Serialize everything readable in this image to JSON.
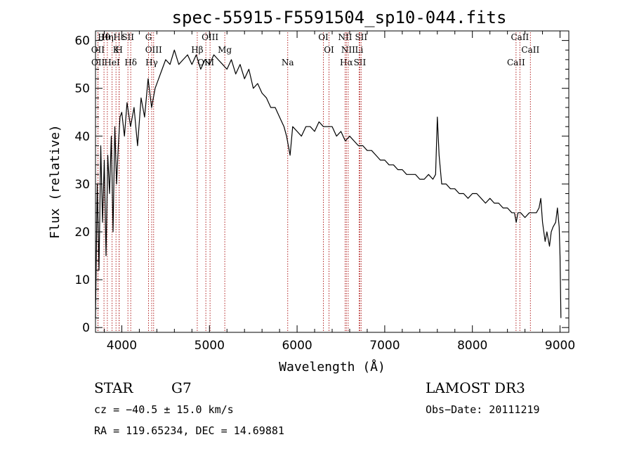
{
  "chart_data": {
    "type": "line",
    "title": "spec-55915-F5591504_sp10-044.fits",
    "xlabel": "Wavelength (Å)",
    "ylabel": "Flux (relative)",
    "xlim": [
      3700,
      9100
    ],
    "ylim": [
      -1,
      62
    ],
    "x_ticks": [
      4000,
      5000,
      6000,
      7000,
      8000,
      9000
    ],
    "x_tick_labels": [
      "4000",
      "5000",
      "6000",
      "7000",
      "8000",
      "9000"
    ],
    "y_ticks": [
      0,
      10,
      20,
      30,
      40,
      50,
      60
    ],
    "y_tick_labels": [
      "0",
      "10",
      "20",
      "30",
      "40",
      "50",
      "60"
    ],
    "series": [
      {
        "name": "flux",
        "x": [
          3700,
          3720,
          3740,
          3760,
          3780,
          3800,
          3820,
          3840,
          3860,
          3880,
          3900,
          3920,
          3940,
          3960,
          3980,
          4000,
          4030,
          4060,
          4100,
          4140,
          4180,
          4220,
          4260,
          4300,
          4340,
          4380,
          4420,
          4460,
          4500,
          4550,
          4600,
          4650,
          4700,
          4750,
          4800,
          4850,
          4900,
          4950,
          5000,
          5050,
          5100,
          5150,
          5200,
          5250,
          5300,
          5350,
          5400,
          5450,
          5500,
          5550,
          5600,
          5650,
          5700,
          5750,
          5800,
          5850,
          5880,
          5900,
          5920,
          5950,
          6000,
          6050,
          6100,
          6150,
          6200,
          6250,
          6300,
          6350,
          6400,
          6450,
          6500,
          6550,
          6600,
          6650,
          6700,
          6750,
          6800,
          6850,
          6900,
          6950,
          7000,
          7050,
          7100,
          7150,
          7200,
          7250,
          7300,
          7350,
          7400,
          7450,
          7500,
          7550,
          7580,
          7600,
          7620,
          7650,
          7700,
          7750,
          7800,
          7850,
          7900,
          7950,
          8000,
          8050,
          8100,
          8150,
          8200,
          8250,
          8300,
          8350,
          8400,
          8450,
          8480,
          8500,
          8520,
          8550,
          8600,
          8650,
          8700,
          8730,
          8760,
          8780,
          8800,
          8830,
          8850,
          8880,
          8900,
          8920,
          8950,
          8970,
          8990,
          9000,
          9010
        ],
        "y": [
          2,
          30,
          12,
          38,
          22,
          35,
          15,
          36,
          28,
          40,
          20,
          42,
          30,
          38,
          44,
          45,
          40,
          47,
          42,
          46,
          38,
          48,
          44,
          52,
          46,
          50,
          52,
          54,
          56,
          55,
          58,
          55,
          56,
          57,
          55,
          57,
          54,
          56,
          55,
          57,
          56,
          55,
          54,
          56,
          53,
          55,
          52,
          54,
          50,
          51,
          49,
          48,
          46,
          46,
          44,
          42,
          40,
          38,
          36,
          42,
          41,
          40,
          42,
          42,
          41,
          43,
          42,
          42,
          42,
          40,
          41,
          39,
          40,
          39,
          38,
          38,
          37,
          37,
          36,
          35,
          35,
          34,
          34,
          33,
          33,
          32,
          32,
          32,
          31,
          31,
          32,
          31,
          32,
          44,
          36,
          30,
          30,
          29,
          29,
          28,
          28,
          27,
          28,
          28,
          27,
          26,
          27,
          26,
          26,
          25,
          25,
          24,
          24,
          22,
          24,
          24,
          23,
          24,
          24,
          24,
          25,
          27,
          22,
          18,
          20,
          17,
          20,
          21,
          22,
          25,
          21,
          15,
          2
        ]
      }
    ],
    "line_markers": [
      {
        "label": "Hθ",
        "x": 3797
      },
      {
        "label": "OII",
        "x": 3727
      },
      {
        "label": "OII",
        "x": 3729
      },
      {
        "label": "Hε",
        "x": 3970
      },
      {
        "label": "K",
        "x": 3934
      },
      {
        "label": "HeI",
        "x": 3889
      },
      {
        "label": "Hη",
        "x": 3835
      },
      {
        "label": "H",
        "x": 3969
      },
      {
        "label": "Hδ",
        "x": 4102
      },
      {
        "label": "SII",
        "x": 4070
      },
      {
        "label": "OIII",
        "x": 4363
      },
      {
        "label": "Hγ",
        "x": 4341
      },
      {
        "label": "G",
        "x": 4305
      },
      {
        "label": "Hβ",
        "x": 4861
      },
      {
        "label": "OIII",
        "x": 4959
      },
      {
        "label": "OIII",
        "x": 5007
      },
      {
        "label": "Mg",
        "x": 5175
      },
      {
        "label": "Na",
        "x": 5893
      },
      {
        "label": "OI",
        "x": 6300
      },
      {
        "label": "OI",
        "x": 6364
      },
      {
        "label": "Hα",
        "x": 6563
      },
      {
        "label": "NII",
        "x": 6548
      },
      {
        "label": "NII",
        "x": 6583
      },
      {
        "label": "SII",
        "x": 6716
      },
      {
        "label": "SII",
        "x": 6731
      },
      {
        "label": "Li",
        "x": 6708
      },
      {
        "label": "CaII",
        "x": 8498
      },
      {
        "label": "CaII",
        "x": 8542
      },
      {
        "label": "CaII",
        "x": 8662
      }
    ]
  },
  "info": {
    "object_class": "STAR",
    "subclass": "G7",
    "survey": "LAMOST DR3",
    "cz": "cz = −40.5 ± 15.0 km/s",
    "obs_date": "Obs−Date: 20111219",
    "coords": "RA = 119.65234, DEC =  14.69881"
  },
  "colors": {
    "line": "#000000",
    "marker": "#b22222",
    "axes": "#000000"
  }
}
